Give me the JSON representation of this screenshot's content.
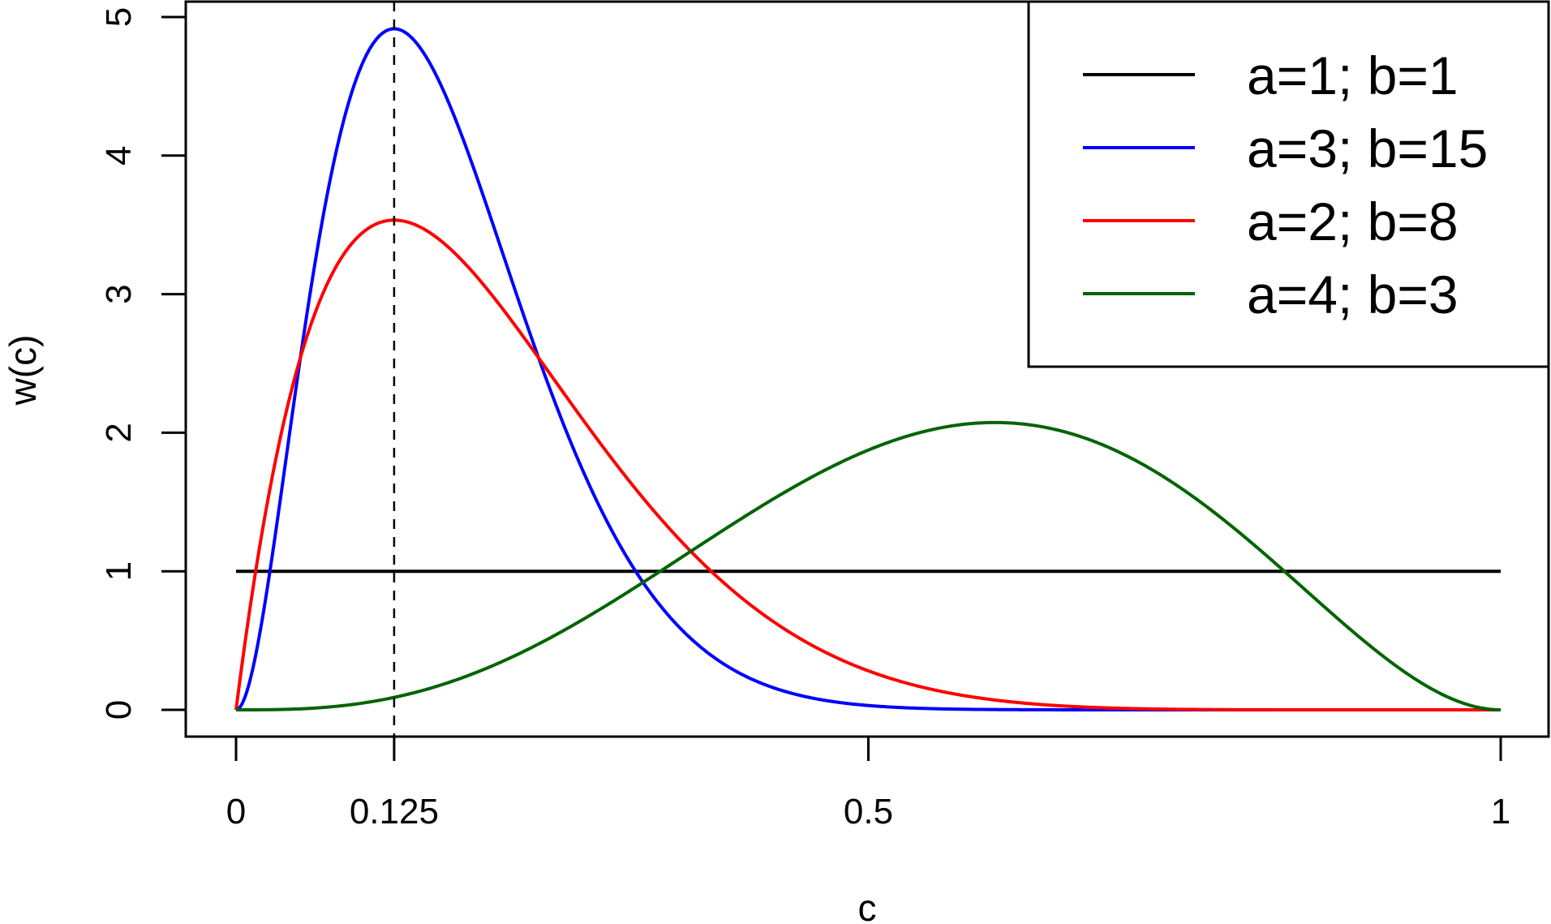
{
  "chart_data": {
    "type": "line",
    "title": "",
    "xlabel": "c",
    "ylabel": "w(c)",
    "xlim": [
      0,
      1
    ],
    "ylim": [
      0,
      5
    ],
    "x_ticks": [
      0,
      0.125,
      0.5,
      1
    ],
    "x_tick_labels": [
      "0",
      "0.125",
      "0.5",
      "1"
    ],
    "y_ticks": [
      0,
      1,
      2,
      3,
      4,
      5
    ],
    "y_tick_labels": [
      "0",
      "1",
      "2",
      "3",
      "4",
      "5"
    ],
    "grid": false,
    "legend_position": "top-right",
    "reference_line": {
      "type": "vertical",
      "style": "dashed",
      "x": 0.125,
      "color": "#000000"
    },
    "series": [
      {
        "name": "a=1; b=1",
        "a": 1,
        "b": 1,
        "color": "#000000"
      },
      {
        "name": "a=3; b=15",
        "a": 3,
        "b": 15,
        "color": "#0000ff"
      },
      {
        "name": "a=2; b=8",
        "a": 2,
        "b": 8,
        "color": "#ff0000"
      },
      {
        "name": "a=4; b=3",
        "a": 4,
        "b": 3,
        "color": "#006400"
      }
    ]
  }
}
